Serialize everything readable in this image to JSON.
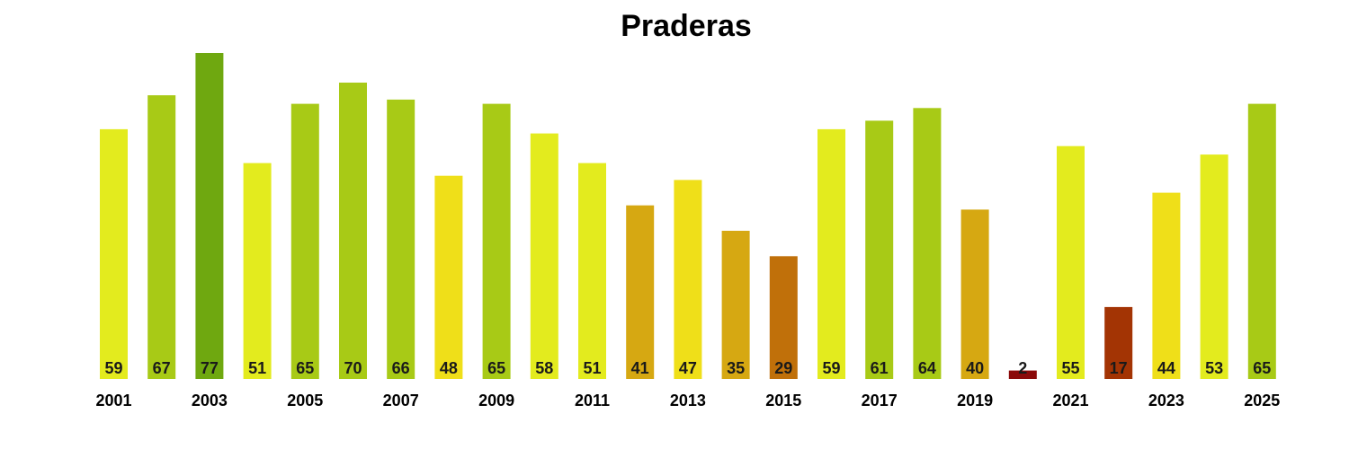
{
  "chart_data": {
    "type": "bar",
    "title": "Praderas",
    "xlabel": "",
    "ylabel": "",
    "categories": [
      "2001",
      "2002",
      "2003",
      "2004",
      "2005",
      "2006",
      "2007",
      "2008",
      "2009",
      "2010",
      "2011",
      "2012",
      "2013",
      "2014",
      "2015",
      "2016",
      "2017",
      "2018",
      "2019",
      "2020",
      "2021",
      "2022",
      "2023",
      "2024",
      "2025"
    ],
    "tick_labels": [
      "2001",
      "2003",
      "2005",
      "2007",
      "2009",
      "2011",
      "2013",
      "2015",
      "2017",
      "2019",
      "2021",
      "2023",
      "2025"
    ],
    "values": [
      59,
      67,
      77,
      51,
      65,
      70,
      66,
      48,
      65,
      58,
      51,
      41,
      47,
      35,
      29,
      59,
      61,
      64,
      40,
      2,
      55,
      17,
      44,
      53,
      65
    ],
    "ylim": [
      0,
      77
    ],
    "grid": false,
    "colors": {
      "very_low": "#8b0a0a",
      "low": "#a33404",
      "mid_low": "#c0700a",
      "mid": "#d6a812",
      "mid_high": "#efdf19",
      "high": "#e3eb1e",
      "very_high": "#a8ca16",
      "top": "#6fa810"
    }
  }
}
